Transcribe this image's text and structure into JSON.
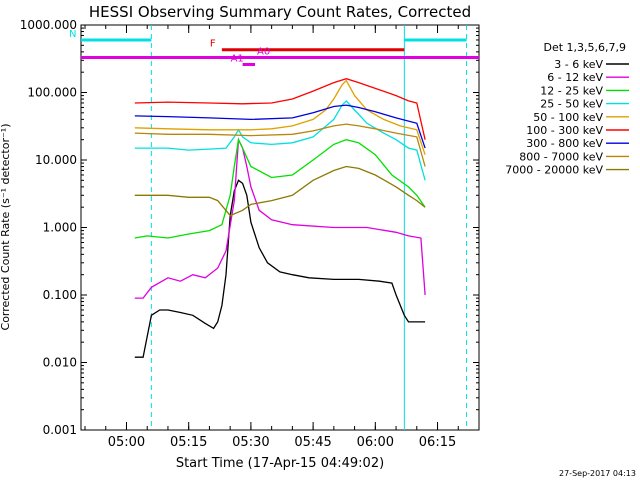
{
  "chart_data": {
    "type": "line",
    "title": "HESSI Observing Summary Count Rates, Corrected",
    "ylabel": "Corrected Count Rate (s⁻¹ detector⁻¹)",
    "xlabel": "Start Time (17-Apr-15 04:49:02)",
    "footer": "27-Sep-2017 04:13",
    "y_scale": "log",
    "ylim": [
      0.001,
      1000
    ],
    "xlim": [
      "04:49:02",
      "06:25:00"
    ],
    "x_unit": "time (UT, 17-Apr-2015)",
    "y_ticks": [
      "1000.000",
      "100.000",
      "10.000",
      "1.000",
      "0.100",
      "0.010",
      "0.001"
    ],
    "x_ticks": [
      "05:00",
      "05:15",
      "05:30",
      "05:45",
      "06:00",
      "06:15"
    ],
    "legend_title": "Det 1,3,5,6,7,9",
    "legend_position": "right",
    "series": [
      {
        "name": "3 - 6 keV",
        "color": "#000000",
        "x": [
          "05:02",
          "05:04",
          "05:06",
          "05:08",
          "05:10",
          "05:13",
          "05:16",
          "05:19",
          "05:21",
          "05:22",
          "05:23",
          "05:24",
          "05:25",
          "05:26",
          "05:27",
          "05:28",
          "05:29",
          "05:30",
          "05:32",
          "05:34",
          "05:37",
          "05:40",
          "05:44",
          "05:50",
          "05:56",
          "06:01",
          "06:04",
          "06:05",
          "06:07",
          "06:08",
          "06:10",
          "06:12"
        ],
        "y": [
          0.012,
          0.012,
          0.05,
          0.06,
          0.06,
          0.055,
          0.05,
          0.038,
          0.032,
          0.04,
          0.07,
          0.2,
          1.5,
          3.5,
          5,
          4.5,
          3,
          1.2,
          0.5,
          0.3,
          0.22,
          0.2,
          0.18,
          0.17,
          0.17,
          0.16,
          0.15,
          0.1,
          0.05,
          0.04,
          0.04,
          0.04
        ]
      },
      {
        "name": "6 - 12 keV",
        "color": "#e000e0",
        "x": [
          "05:02",
          "05:04",
          "05:06",
          "05:10",
          "05:13",
          "05:16",
          "05:19",
          "05:22",
          "05:24",
          "05:26",
          "05:27",
          "05:28",
          "05:29",
          "05:30",
          "05:32",
          "05:35",
          "05:40",
          "05:50",
          "05:58",
          "06:05",
          "06:08",
          "06:11",
          "06:12"
        ],
        "y": [
          0.09,
          0.09,
          0.13,
          0.18,
          0.16,
          0.2,
          0.18,
          0.25,
          0.45,
          2.5,
          20,
          15,
          8,
          4,
          1.8,
          1.3,
          1.1,
          1.0,
          1.0,
          0.85,
          0.75,
          0.7,
          0.1
        ]
      },
      {
        "name": "12 - 25 keV",
        "color": "#00e000",
        "x": [
          "05:02",
          "05:05",
          "05:10",
          "05:15",
          "05:20",
          "05:23",
          "05:25",
          "05:26",
          "05:27",
          "05:28",
          "05:30",
          "05:35",
          "05:40",
          "05:45",
          "05:50",
          "05:53",
          "05:56",
          "06:00",
          "06:04",
          "06:08",
          "06:10",
          "06:12"
        ],
        "y": [
          0.7,
          0.75,
          0.7,
          0.8,
          0.9,
          1.1,
          3,
          8,
          20,
          15,
          8,
          5.5,
          6,
          10,
          17,
          20,
          18,
          12,
          6,
          4,
          3,
          2
        ]
      },
      {
        "name": "25 - 50 keV",
        "color": "#00e0e0",
        "x": [
          "05:02",
          "05:05",
          "05:10",
          "05:15",
          "05:20",
          "05:24",
          "05:26",
          "05:27",
          "05:28",
          "05:30",
          "05:35",
          "05:40",
          "05:45",
          "05:50",
          "05:52",
          "05:53",
          "05:55",
          "05:58",
          "06:02",
          "06:05",
          "06:08",
          "06:10",
          "06:12"
        ],
        "y": [
          15,
          15,
          15,
          14,
          14.5,
          15,
          22,
          28,
          22,
          18,
          17,
          18,
          22,
          40,
          65,
          75,
          55,
          35,
          25,
          20,
          15,
          14,
          5
        ]
      },
      {
        "name": "50 - 100 keV",
        "color": "#e0a000",
        "x": [
          "05:02",
          "05:10",
          "05:20",
          "05:30",
          "05:35",
          "05:40",
          "05:45",
          "05:48",
          "05:50",
          "05:52",
          "05:53",
          "05:55",
          "05:58",
          "06:02",
          "06:06",
          "06:10",
          "06:12"
        ],
        "y": [
          30,
          29,
          28,
          28,
          29,
          32,
          40,
          55,
          80,
          130,
          150,
          90,
          55,
          40,
          32,
          28,
          12
        ]
      },
      {
        "name": "100 - 300 keV",
        "color": "#ff0000",
        "x": [
          "05:02",
          "05:10",
          "05:20",
          "05:28",
          "05:35",
          "05:40",
          "05:45",
          "05:50",
          "05:53",
          "05:56",
          "06:00",
          "06:05",
          "06:08",
          "06:10",
          "06:12"
        ],
        "y": [
          70,
          72,
          70,
          68,
          70,
          80,
          105,
          140,
          160,
          140,
          115,
          90,
          75,
          70,
          20
        ]
      },
      {
        "name": "300 - 800 keV",
        "color": "#0000e0",
        "x": [
          "05:02",
          "05:10",
          "05:20",
          "05:30",
          "05:40",
          "05:45",
          "05:50",
          "05:53",
          "05:56",
          "06:00",
          "06:05",
          "06:10",
          "06:12"
        ],
        "y": [
          45,
          44,
          42,
          40,
          42,
          50,
          62,
          65,
          60,
          52,
          42,
          35,
          15
        ]
      },
      {
        "name": "800 - 7000 keV",
        "color": "#b8860b",
        "x": [
          "05:02",
          "05:10",
          "05:20",
          "05:30",
          "05:40",
          "05:45",
          "05:50",
          "05:53",
          "05:56",
          "06:00",
          "06:05",
          "06:10",
          "06:12"
        ],
        "y": [
          25,
          24,
          24,
          23,
          24,
          27,
          32,
          34,
          32,
          29,
          25,
          22,
          8
        ]
      },
      {
        "name": "7000 - 20000 keV",
        "color": "#8b7a00",
        "x": [
          "05:02",
          "05:05",
          "05:10",
          "05:15",
          "05:20",
          "05:22",
          "05:25",
          "05:28",
          "05:30",
          "05:35",
          "05:40",
          "05:45",
          "05:50",
          "05:53",
          "05:56",
          "06:00",
          "06:05",
          "06:08",
          "06:10",
          "06:12"
        ],
        "y": [
          3,
          3,
          3,
          2.8,
          2.8,
          2.5,
          1.5,
          1.8,
          2.2,
          2.5,
          3,
          5,
          7,
          8,
          7.5,
          6,
          4,
          3,
          2.5,
          2
        ]
      }
    ],
    "annotations": [
      {
        "label": "N",
        "color": "#00e0e0",
        "y": 600,
        "x_start": "04:49:02",
        "x_end": "05:06",
        "style": "solid"
      },
      {
        "label": "",
        "color": "#00e0e0",
        "y": 600,
        "x_start": "06:07",
        "x_end": "06:22",
        "style": "solid"
      },
      {
        "label": "F",
        "color": "#e00000",
        "y": 430,
        "x_start": "05:23",
        "x_end": "06:07",
        "style": "solid"
      },
      {
        "label": "",
        "color": "#e000e0",
        "y": 330,
        "x_start": "04:49:02",
        "x_end": "06:25:00",
        "style": "solid"
      },
      {
        "label": "A1",
        "color": "#e000e0",
        "y": 260,
        "x_start": "05:28",
        "x_end": "05:31",
        "style": "solid"
      },
      {
        "label": "A0",
        "color": "#e000e0",
        "y": 330,
        "x_start": "05:31",
        "x_end": "05:31",
        "style": "label"
      }
    ],
    "vertical_markers": [
      {
        "x": "05:06",
        "color": "#00e0e0",
        "style": "dashed"
      },
      {
        "x": "06:07",
        "color": "#00e0e0",
        "style": "solid"
      },
      {
        "x": "06:22",
        "color": "#00e0e0",
        "style": "dashed"
      }
    ]
  }
}
